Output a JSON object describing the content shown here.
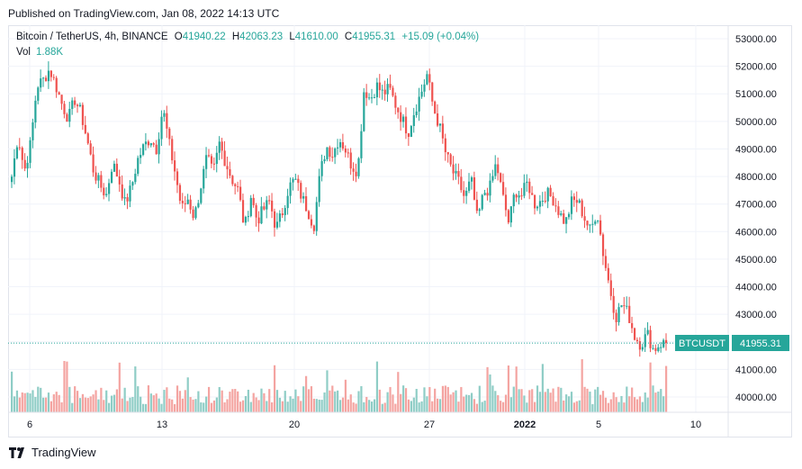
{
  "header": {
    "published": "Published on TradingView.com, Jan 08, 2022 14:13 UTC"
  },
  "legend": {
    "symbol": "Bitcoin / TetherUS, 4h, BINANCE",
    "open_label": "O",
    "open": "41940.22",
    "high_label": "H",
    "high": "42063.23",
    "low_label": "L",
    "low": "41610.00",
    "close_label": "C",
    "close": "41955.31",
    "change": "+15.09 (+0.04%)",
    "vol_label": "Vol",
    "vol": "1.88K"
  },
  "price_tag": {
    "ticker": "BTCUSDT",
    "price": "41955.31"
  },
  "footer": {
    "brand": "TradingView"
  },
  "colors": {
    "up": "#26a69a",
    "down": "#ef5350",
    "up_vol": "#8fcdc6",
    "down_vol": "#f4a4a1"
  },
  "chart_data": {
    "type": "candlestick",
    "title": "Bitcoin / TetherUS, 4h, BINANCE",
    "y_axis": {
      "min": 40000,
      "max": 53000,
      "ticks": [
        "53000.00",
        "52000.00",
        "51000.00",
        "50000.00",
        "49000.00",
        "48000.00",
        "47000.00",
        "46000.00",
        "45000.00",
        "44000.00",
        "43000.00",
        "42000.00",
        "41000.00",
        "40000.00"
      ],
      "position": "right"
    },
    "x_axis": {
      "ticks": [
        "6",
        "13",
        "20",
        "27",
        "2022",
        "5",
        "10"
      ]
    },
    "grid": true,
    "last_price": 41955.31,
    "close_path": [
      48000,
      49500,
      48200,
      49200,
      51300,
      51500,
      51900,
      51300,
      50600,
      50100,
      50800,
      50300,
      49300,
      48200,
      47700,
      47300,
      48500,
      47900,
      47000,
      47600,
      48600,
      49100,
      49400,
      49000,
      50500,
      49200,
      48100,
      46800,
      47200,
      46500,
      47600,
      48700,
      48100,
      49200,
      48500,
      47900,
      47500,
      46100,
      47300,
      46400,
      46800,
      47100,
      46100,
      46700,
      47600,
      47900,
      47300,
      46800,
      46200,
      48100,
      49100,
      48800,
      49400,
      49000,
      48400,
      48200,
      51200,
      50800,
      51300,
      51000,
      51200,
      50600,
      50100,
      49600,
      50400,
      51000,
      51700,
      50500,
      49800,
      48800,
      48200,
      47800,
      47200,
      47900,
      46400,
      47400,
      47600,
      48500,
      47300,
      46300,
      47500,
      47300,
      47800,
      47000,
      47100,
      47400,
      47200,
      46700,
      46300,
      47100,
      47100,
      46500,
      46000,
      46800,
      45200,
      44000,
      42900,
      43400,
      43000,
      42200,
      41900,
      42300,
      41700,
      41940,
      41955
    ],
    "volume": {
      "max_label": "1.88K",
      "last": 1.88
    }
  }
}
